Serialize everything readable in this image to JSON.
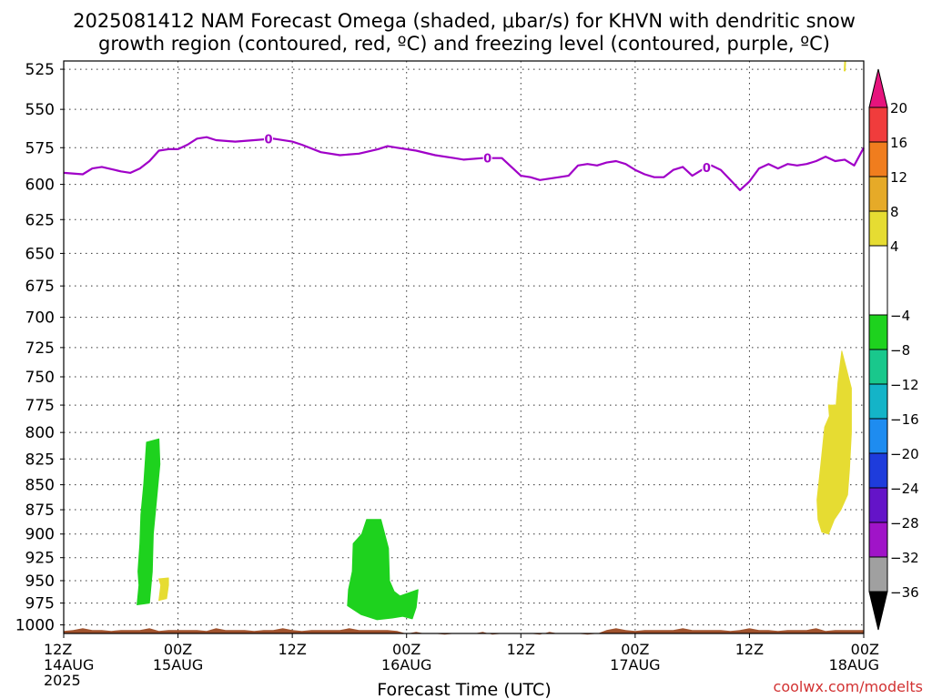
{
  "chart_data": {
    "type": "heatmap",
    "title_lines": [
      "2025081412 NAM Forecast Omega (shaded, μbar/s) for KHVN with dendritic snow",
      "growth region (contoured, red, ºC) and freezing level (contoured, purple, ºC)"
    ],
    "xlabel": "Forecast Time (UTC)",
    "credit": "coolwx.com/modelts",
    "x_range_hours": [
      0,
      84
    ],
    "y_range_hpa": [
      520,
      1010
    ],
    "y_scale": "log-pressure (top at low pressure)",
    "y_ticks": [
      525,
      550,
      575,
      600,
      625,
      650,
      675,
      700,
      725,
      750,
      775,
      800,
      825,
      850,
      875,
      900,
      925,
      950,
      975,
      1000
    ],
    "x_ticks": [
      {
        "hour": 0,
        "lines": [
          "12Z",
          "14AUG",
          "2025"
        ]
      },
      {
        "hour": 12,
        "lines": [
          "00Z",
          "15AUG"
        ]
      },
      {
        "hour": 24,
        "lines": [
          "12Z"
        ]
      },
      {
        "hour": 36,
        "lines": [
          "00Z",
          "16AUG"
        ]
      },
      {
        "hour": 48,
        "lines": [
          "12Z"
        ]
      },
      {
        "hour": 60,
        "lines": [
          "00Z",
          "17AUG"
        ]
      },
      {
        "hour": 72,
        "lines": [
          "12Z"
        ]
      },
      {
        "hour": 84,
        "lines": [
          "00Z",
          "18AUG"
        ]
      }
    ],
    "grid": true,
    "colorbar": {
      "labels": [
        "20",
        "16",
        "12",
        "8",
        "4",
        "−4",
        "−8",
        "−12",
        "−16",
        "−20",
        "−24",
        "−28",
        "−32",
        "−36"
      ],
      "bins": [
        {
          "from": 16,
          "to": 20,
          "color": "#f03c3c"
        },
        {
          "from": 12,
          "to": 16,
          "color": "#f07d1e"
        },
        {
          "from": 8,
          "to": 12,
          "color": "#e6aa28"
        },
        {
          "from": 4,
          "to": 8,
          "color": "#e6dc32"
        },
        {
          "from": -4,
          "to": 4,
          "color": "#ffffff"
        },
        {
          "from": -8,
          "to": -4,
          "color": "#1ed21e"
        },
        {
          "from": -12,
          "to": -8,
          "color": "#19c88c"
        },
        {
          "from": -16,
          "to": -12,
          "color": "#14b4c8"
        },
        {
          "from": -20,
          "to": -16,
          "color": "#1e8cf0"
        },
        {
          "from": -24,
          "to": -20,
          "color": "#1e3cdc"
        },
        {
          "from": -28,
          "to": -24,
          "color": "#6414c8"
        },
        {
          "from": -32,
          "to": -28,
          "color": "#a014c8"
        },
        {
          "from": -36,
          "to": -32,
          "color": "#a0a0a0"
        }
      ],
      "top_arrow_color": "#e6147d",
      "bottom_arrow_color": "#000000"
    },
    "freezing_level": {
      "label": "0",
      "color": "#a000c8",
      "label_hours": [
        21.5,
        44.5,
        67.5
      ],
      "points": [
        [
          0,
          592
        ],
        [
          2,
          593
        ],
        [
          3,
          589
        ],
        [
          4,
          588
        ],
        [
          6,
          591
        ],
        [
          7,
          592
        ],
        [
          8,
          589
        ],
        [
          9,
          584
        ],
        [
          10,
          577
        ],
        [
          11,
          576
        ],
        [
          12,
          576
        ],
        [
          13,
          573
        ],
        [
          14,
          569
        ],
        [
          15,
          568
        ],
        [
          16,
          570
        ],
        [
          18,
          571
        ],
        [
          20,
          570
        ],
        [
          22,
          569
        ],
        [
          24,
          571
        ],
        [
          25,
          573
        ],
        [
          27,
          578
        ],
        [
          29,
          580
        ],
        [
          31,
          579
        ],
        [
          33,
          576
        ],
        [
          34,
          574
        ],
        [
          35,
          575
        ],
        [
          37,
          577
        ],
        [
          39,
          580
        ],
        [
          41,
          582
        ],
        [
          42,
          583
        ],
        [
          44,
          582
        ],
        [
          46,
          582
        ],
        [
          48,
          594
        ],
        [
          49,
          595
        ],
        [
          50,
          597
        ],
        [
          52,
          595
        ],
        [
          53,
          594
        ],
        [
          54,
          587
        ],
        [
          55,
          586
        ],
        [
          56,
          587
        ],
        [
          57,
          585
        ],
        [
          58,
          584
        ],
        [
          59,
          586
        ],
        [
          60,
          590
        ],
        [
          61,
          593
        ],
        [
          62,
          595
        ],
        [
          63,
          595
        ],
        [
          64,
          590
        ],
        [
          65,
          588
        ],
        [
          66,
          594
        ],
        [
          67,
          590
        ],
        [
          68,
          587
        ],
        [
          69,
          590
        ],
        [
          70,
          597
        ],
        [
          71,
          604
        ],
        [
          72,
          598
        ],
        [
          73,
          589
        ],
        [
          74,
          586
        ],
        [
          75,
          589
        ],
        [
          76,
          586
        ],
        [
          77,
          587
        ],
        [
          78,
          586
        ],
        [
          79,
          584
        ],
        [
          80,
          581
        ],
        [
          81,
          584
        ],
        [
          82,
          583
        ],
        [
          83,
          587
        ],
        [
          84,
          575
        ]
      ]
    },
    "omega_regions": [
      {
        "name": "upward-motion",
        "color": "#1ed21e",
        "points": [
          [
            8.7,
            809
          ],
          [
            10.0,
            806
          ],
          [
            10.1,
            830
          ],
          [
            9.7,
            870
          ],
          [
            9.4,
            900
          ],
          [
            9.3,
            940
          ],
          [
            9.0,
            975
          ],
          [
            7.7,
            977
          ],
          [
            7.9,
            955
          ],
          [
            7.8,
            940
          ],
          [
            8.0,
            910
          ],
          [
            8.1,
            880
          ],
          [
            8.4,
            850
          ]
        ]
      },
      {
        "name": "upward-motion",
        "color": "#1ed21e",
        "points": [
          [
            31.8,
            885
          ],
          [
            33.3,
            885
          ],
          [
            34.1,
            915
          ],
          [
            34.2,
            950
          ],
          [
            34.7,
            962
          ],
          [
            35.3,
            967
          ],
          [
            37.2,
            960
          ],
          [
            37.0,
            980
          ],
          [
            36.6,
            993
          ],
          [
            35.6,
            990
          ],
          [
            34.5,
            992
          ],
          [
            32.9,
            994
          ],
          [
            31.2,
            988
          ],
          [
            29.8,
            978
          ],
          [
            29.9,
            960
          ],
          [
            30.3,
            940
          ],
          [
            30.4,
            910
          ],
          [
            31.3,
            900
          ]
        ]
      },
      {
        "name": "downward-motion",
        "color": "#e6dc32",
        "points": [
          [
            10.0,
            948
          ],
          [
            11.0,
            947
          ],
          [
            11.0,
            955
          ],
          [
            10.8,
            970
          ],
          [
            10.0,
            972
          ],
          [
            10.2,
            955
          ]
        ]
      },
      {
        "name": "downward-motion",
        "color": "#e6dc32",
        "points": [
          [
            81.7,
            728
          ],
          [
            82.7,
            760
          ],
          [
            82.7,
            800
          ],
          [
            82.5,
            835
          ],
          [
            82.3,
            860
          ],
          [
            81.6,
            875
          ],
          [
            80.9,
            885
          ],
          [
            80.3,
            900
          ],
          [
            79.6,
            898
          ],
          [
            79.2,
            885
          ],
          [
            79.1,
            865
          ],
          [
            79.5,
            830
          ],
          [
            79.9,
            795
          ],
          [
            80.4,
            785
          ],
          [
            80.3,
            775
          ],
          [
            81.1,
            775
          ],
          [
            81.3,
            755
          ]
        ]
      },
      {
        "name": "downward-motion",
        "color": "#e6dc32",
        "points": [
          [
            82.0,
            520
          ],
          [
            82.1,
            520
          ],
          [
            82.05,
            526
          ],
          [
            81.95,
            526
          ]
        ]
      }
    ],
    "terrain": {
      "color": "#a0522d",
      "top_hpa": 1006
    }
  }
}
